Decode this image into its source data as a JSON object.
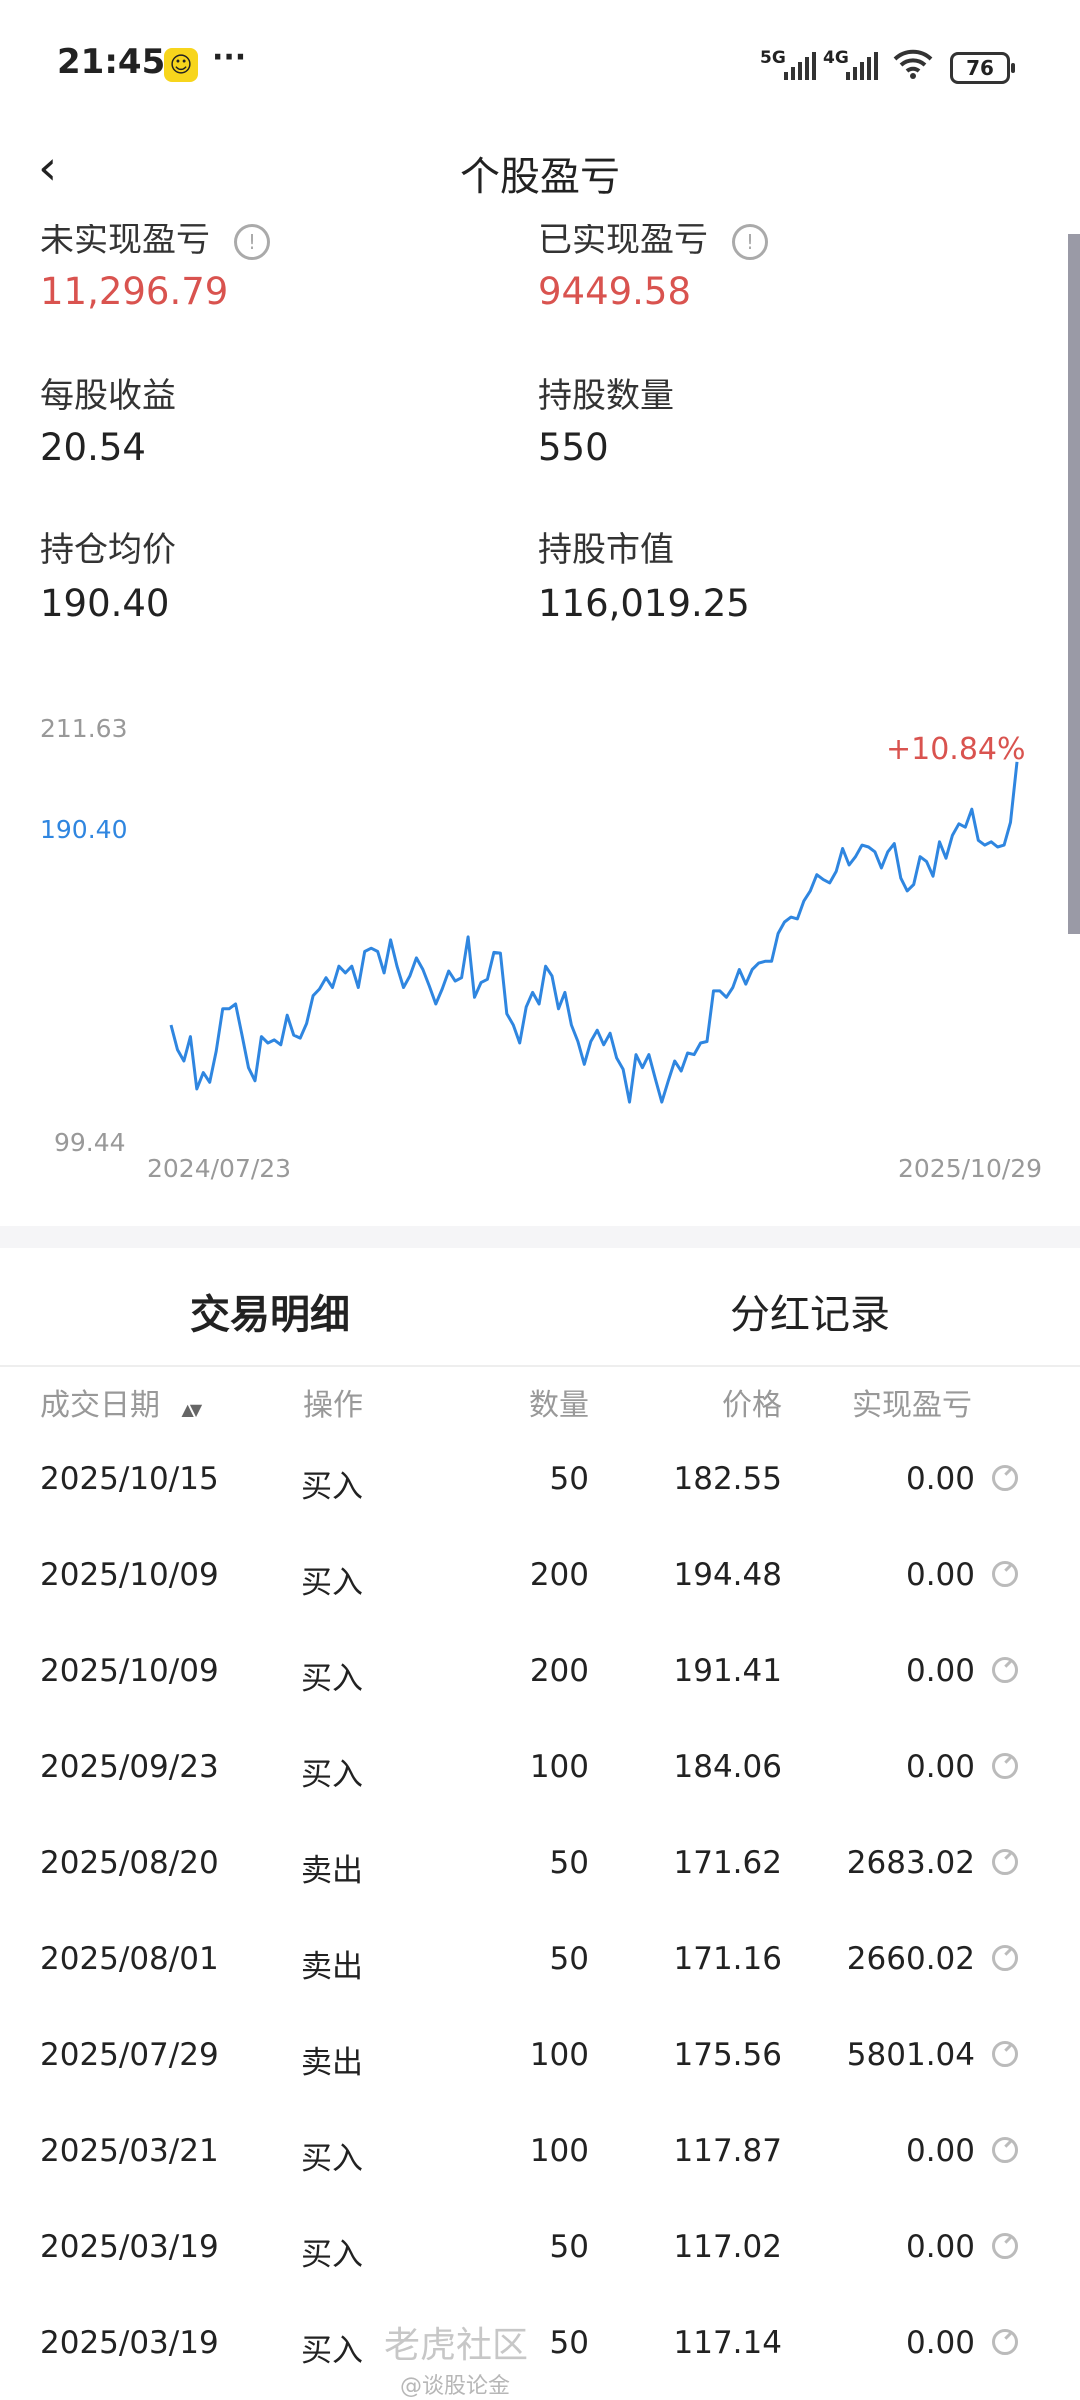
{
  "status_bar": {
    "time": "21:45",
    "more": "···",
    "net1": "5G",
    "net2": "4G",
    "battery": "76"
  },
  "header": {
    "back": "‹",
    "title": "个股盈亏"
  },
  "stats": [
    {
      "label": "未实现盈亏",
      "value": "11,296.79",
      "color": "#d9534f",
      "info": true
    },
    {
      "label": "已实现盈亏",
      "value": "9449.58",
      "color": "#d9534f",
      "info": true
    },
    {
      "label": "每股收益",
      "value": "20.54"
    },
    {
      "label": "持股数量",
      "value": "550"
    },
    {
      "label": "持仓均价",
      "value": "190.40"
    },
    {
      "label": "持股市值",
      "value": "116,019.25"
    }
  ],
  "chart_data": {
    "type": "line",
    "y_max_label": "211.63",
    "y_avg_label": "190.40",
    "y_min_label": "99.44",
    "ylim": [
      99.44,
      211.63
    ],
    "x_start": "2024/07/23",
    "x_end": "2025/10/29",
    "change_label": "+10.84%",
    "line_color": "#2f86e0",
    "avg_color": "#2f86e0",
    "change_color": "#d9534f",
    "values": [
      124.7,
      116.6,
      112.9,
      120.9,
      103.7,
      109.1,
      105.9,
      116.1,
      130.0,
      130.0,
      131.6,
      121.4,
      110.7,
      106.4,
      120.9,
      118.8,
      119.8,
      118.2,
      127.9,
      121.4,
      120.4,
      125.2,
      134.3,
      136.5,
      140.2,
      137.0,
      144.0,
      141.8,
      144.0,
      137.0,
      148.8,
      149.9,
      148.8,
      141.8,
      152.6,
      144.0,
      137.0,
      140.8,
      146.7,
      142.9,
      137.5,
      131.6,
      136.5,
      142.4,
      139.1,
      140.2,
      153.6,
      133.8,
      138.6,
      139.7,
      148.5,
      148.3,
      128.4,
      124.7,
      118.8,
      130.6,
      135.4,
      131.6,
      144.0,
      140.8,
      130.0,
      135.4,
      124.7,
      119.3,
      111.8,
      119.3,
      123.0,
      118.2,
      122.0,
      113.9,
      110.2,
      99.4,
      115.0,
      110.7,
      115.0,
      107.0,
      99.4,
      106.4,
      112.9,
      109.6,
      115.5,
      115.0,
      118.8,
      119.3,
      135.9,
      135.9,
      133.8,
      137.0,
      142.9,
      138.1,
      142.9,
      145.0,
      145.6,
      145.6,
      154.7,
      158.5,
      160.1,
      159.5,
      165.4,
      168.7,
      174.0,
      172.4,
      171.3,
      175.1,
      182.6,
      177.2,
      179.9,
      183.7,
      183.1,
      181.5,
      176.2,
      181.5,
      184.2,
      172.9,
      168.7,
      170.8,
      179.9,
      178.3,
      173.5,
      184.8,
      179.4,
      186.9,
      190.7,
      189.6,
      195.5,
      185.3,
      183.7,
      184.8,
      183.1,
      183.7,
      191.2,
      211.0
    ]
  },
  "tabs": [
    {
      "label": "交易明细",
      "active": true
    },
    {
      "label": "分红记录",
      "active": false
    }
  ],
  "table": {
    "headers": [
      "成交日期",
      "操作",
      "数量",
      "价格",
      "实现盈亏"
    ],
    "sort_icon": "▲▼",
    "rows": [
      {
        "date": "2025/10/15",
        "op": "买入",
        "side": "buy",
        "qty": "50",
        "price": "182.55",
        "pnl": "0.00"
      },
      {
        "date": "2025/10/09",
        "op": "买入",
        "side": "buy",
        "qty": "200",
        "price": "194.48",
        "pnl": "0.00"
      },
      {
        "date": "2025/10/09",
        "op": "买入",
        "side": "buy",
        "qty": "200",
        "price": "191.41",
        "pnl": "0.00"
      },
      {
        "date": "2025/09/23",
        "op": "买入",
        "side": "buy",
        "qty": "100",
        "price": "184.06",
        "pnl": "0.00"
      },
      {
        "date": "2025/08/20",
        "op": "卖出",
        "side": "sell",
        "qty": "50",
        "price": "171.62",
        "pnl": "2683.02"
      },
      {
        "date": "2025/08/01",
        "op": "卖出",
        "side": "sell",
        "qty": "50",
        "price": "171.16",
        "pnl": "2660.02"
      },
      {
        "date": "2025/07/29",
        "op": "卖出",
        "side": "sell",
        "qty": "100",
        "price": "175.56",
        "pnl": "5801.04"
      },
      {
        "date": "2025/03/21",
        "op": "买入",
        "side": "buy",
        "qty": "100",
        "price": "117.87",
        "pnl": "0.00"
      },
      {
        "date": "2025/03/19",
        "op": "买入",
        "side": "buy",
        "qty": "50",
        "price": "117.02",
        "pnl": "0.00"
      },
      {
        "date": "2025/03/19",
        "op": "买入",
        "side": "buy",
        "qty": "50",
        "price": "117.14",
        "pnl": "0.00"
      }
    ]
  },
  "watermark": {
    "line1": "老虎社区",
    "line2": "@谈股论金"
  }
}
